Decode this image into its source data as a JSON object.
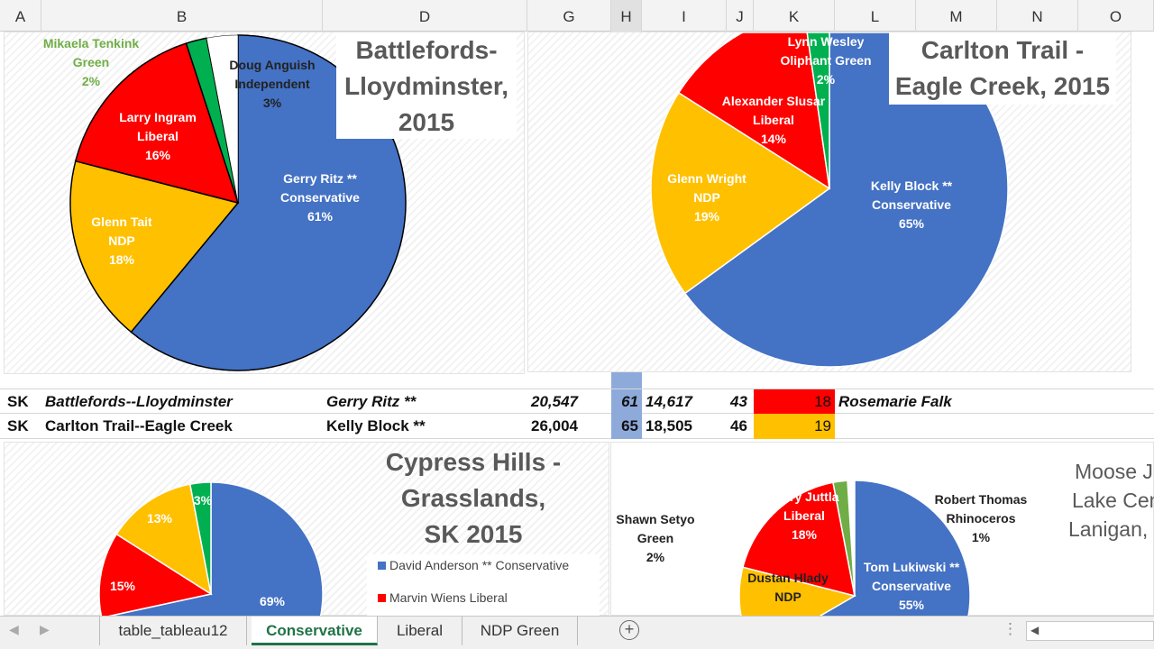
{
  "columns": [
    "A",
    "B",
    "D",
    "G",
    "H",
    "I",
    "J",
    "K",
    "L",
    "M",
    "N",
    "O"
  ],
  "colors": {
    "conservative": "#4472c4",
    "ndp": "#ffc000",
    "liberal": "#ff0000",
    "green": "#00b050",
    "green_light": "#70ad47",
    "other": "#ffffff",
    "highlight": "#8eaadb"
  },
  "charts": [
    {
      "title": "Battlefords-Lloydminster, 2015",
      "title_lines": [
        "Battlefords-",
        "Lloydminster,",
        "2015"
      ],
      "slices": [
        {
          "party": "conservative",
          "value": 61,
          "label": [
            "Gerry Ritz **",
            "Conservative",
            "61%"
          ]
        },
        {
          "party": "ndp",
          "value": 18,
          "label": [
            "Glenn Tait",
            "NDP",
            "18%"
          ]
        },
        {
          "party": "liberal",
          "value": 16,
          "label": [
            "Larry Ingram",
            "Liberal",
            "16%"
          ]
        },
        {
          "party": "green",
          "value": 2,
          "label": [
            "Mikaela Tenkink",
            "Green",
            "2%"
          ]
        },
        {
          "party": "other",
          "value": 3,
          "label": [
            "Doug Anguish",
            "Independent",
            "3%"
          ]
        }
      ]
    },
    {
      "title": "Carlton Trail - Eagle Creek, 2015",
      "title_lines": [
        "Carlton Trail -",
        "Eagle Creek, 2015"
      ],
      "slices": [
        {
          "party": "conservative",
          "value": 65,
          "label": [
            "Kelly Block **",
            "Conservative",
            "65%"
          ]
        },
        {
          "party": "ndp",
          "value": 19,
          "label": [
            "Glenn Wright",
            "NDP",
            "19%"
          ]
        },
        {
          "party": "liberal",
          "value": 14,
          "label": [
            "Alexander Slusar",
            "Liberal",
            "14%"
          ]
        },
        {
          "party": "green",
          "value": 2,
          "label": [
            "Lynn Wesley",
            "Oliphant Green",
            "2%"
          ]
        }
      ]
    },
    {
      "title": "Cypress Hills - Grasslands, SK 2015",
      "title_lines": [
        "Cypress Hills -",
        "Grasslands,",
        "SK 2015"
      ],
      "slices": [
        {
          "party": "conservative",
          "value": 69,
          "label": [
            "69%"
          ]
        },
        {
          "party": "liberal",
          "value": 15,
          "label": [
            "15%"
          ]
        },
        {
          "party": "ndp",
          "value": 13,
          "label": [
            "13%"
          ]
        },
        {
          "party": "green",
          "value": 3,
          "label": [
            "3%"
          ]
        }
      ],
      "legend": [
        "David Anderson ** Conservative",
        "Marvin Wiens Liberal"
      ]
    },
    {
      "title": "Moose Jaw - Lake Centre - Lanigan",
      "title_lines": [
        "Moose J",
        "Lake Cem",
        "Lanigan, "
      ],
      "slices": [
        {
          "party": "conservative",
          "value": 55,
          "label": [
            "Tom Lukiwski **",
            "Conservative",
            "55%"
          ]
        },
        {
          "party": "ndp",
          "value": 24,
          "label": [
            "Dustan Hlady",
            "NDP"
          ]
        },
        {
          "party": "liberal",
          "value": 18,
          "label": [
            "Perry Juttla",
            "Liberal",
            "18%"
          ]
        },
        {
          "party": "green_light",
          "value": 2,
          "label": [
            "Shawn Setyo",
            "Green",
            "2%"
          ]
        },
        {
          "party": "other",
          "value": 1,
          "label": [
            "Robert Thomas",
            "Rhinoceros",
            "1%"
          ]
        }
      ]
    }
  ],
  "rows": [
    {
      "prov": "SK",
      "riding": "Battlefords--Lloydminster",
      "winner": "Gerry Ritz **",
      "votes": "20,547",
      "pct": "61",
      "second_votes": "14,617",
      "second_pct": "43",
      "margin": "18",
      "successor": "Rosemarie Falk"
    },
    {
      "prov": "SK",
      "riding": "Carlton Trail--Eagle Creek",
      "winner": "Kelly Block **",
      "votes": "26,004",
      "pct": "65",
      "second_votes": "18,505",
      "second_pct": "46",
      "margin": "19",
      "successor": ""
    }
  ],
  "tabs": [
    "table_tableau12",
    "Conservative",
    "Liberal",
    "NDP Green"
  ],
  "active_tab": "Conservative"
}
